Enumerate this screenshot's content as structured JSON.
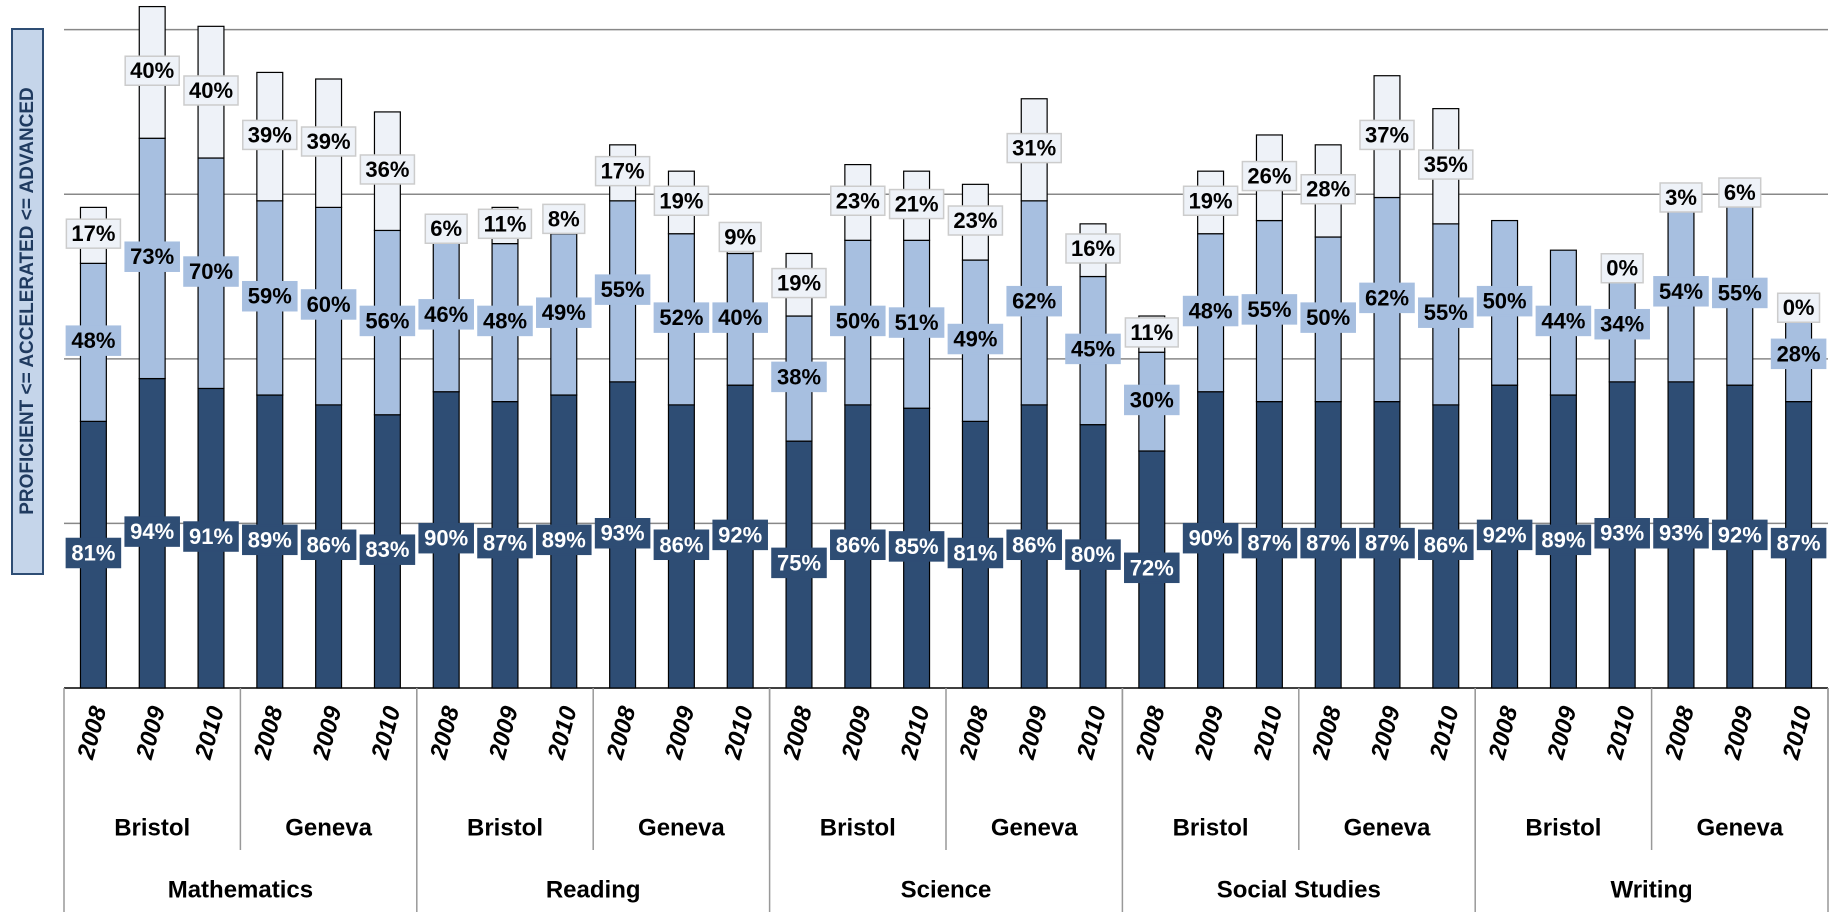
{
  "chart_data": {
    "type": "stacked-bar",
    "ylabel": "PROFICIENT <= ACCELERATED <= ADVANCED",
    "categories": [
      "2008",
      "2009",
      "2010",
      "2008",
      "2009",
      "2010",
      "2008",
      "2009",
      "2010",
      "2008",
      "2009",
      "2010",
      "2008",
      "2009",
      "2010",
      "2008",
      "2009",
      "2010",
      "2008",
      "2009",
      "2010",
      "2008",
      "2009",
      "2010",
      "2008",
      "2009",
      "2010",
      "2008",
      "2009",
      "2010"
    ],
    "towns": [
      "Bristol",
      "Geneva",
      "Bristol",
      "Geneva",
      "Bristol",
      "Geneva",
      "Bristol",
      "Geneva",
      "Bristol",
      "Geneva"
    ],
    "subjects": [
      "Mathematics",
      "Reading",
      "Science",
      "Social Studies",
      "Writing"
    ],
    "ylim": [
      0,
      209
    ],
    "yticks": [
      0,
      50,
      100,
      150,
      200
    ],
    "grid": true,
    "series": [
      {
        "color": "#2e4d74",
        "label_color": "#ffffff",
        "values": [
          81,
          94,
          91,
          89,
          86,
          83,
          90,
          87,
          89,
          93,
          86,
          92,
          75,
          86,
          85,
          81,
          86,
          80,
          72,
          90,
          87,
          87,
          87,
          86,
          92,
          89,
          93,
          93,
          92,
          87
        ],
        "value_labels": [
          "81%",
          "94%",
          "91%",
          "89%",
          "86%",
          "83%",
          "90%",
          "87%",
          "89%",
          "93%",
          "86%",
          "92%",
          "75%",
          "86%",
          "85%",
          "81%",
          "86%",
          "80%",
          "72%",
          "90%",
          "87%",
          "87%",
          "87%",
          "86%",
          "92%",
          "89%",
          "93%",
          "93%",
          "92%",
          "87%"
        ]
      },
      {
        "color": "#a7bfe0",
        "label_color": "#000000",
        "values": [
          48,
          73,
          70,
          59,
          60,
          56,
          46,
          48,
          49,
          55,
          52,
          40,
          38,
          50,
          51,
          49,
          62,
          45,
          30,
          48,
          55,
          50,
          62,
          55,
          50,
          44,
          34,
          54,
          55,
          28
        ],
        "value_labels": [
          "48%",
          "73%",
          "70%",
          "59%",
          "60%",
          "56%",
          "46%",
          "48%",
          "49%",
          "55%",
          "52%",
          "40%",
          "38%",
          "50%",
          "51%",
          "49%",
          "62%",
          "45%",
          "30%",
          "48%",
          "55%",
          "50%",
          "62%",
          "55%",
          "50%",
          "44%",
          "34%",
          "54%",
          "55%",
          "28%"
        ]
      },
      {
        "color": "#eef2f8",
        "label_color": "#000000",
        "values": [
          17,
          40,
          40,
          39,
          39,
          36,
          6,
          11,
          8,
          17,
          19,
          9,
          19,
          23,
          21,
          23,
          31,
          16,
          11,
          19,
          26,
          28,
          37,
          35,
          null,
          null,
          0,
          3,
          6,
          0
        ],
        "value_labels": [
          "17%",
          "40%",
          "40%",
          "39%",
          "39%",
          "36%",
          "6%",
          "11%",
          "8%",
          "17%",
          "19%",
          "9%",
          "19%",
          "23%",
          "21%",
          "23%",
          "31%",
          "16%",
          "11%",
          "19%",
          "26%",
          "28%",
          "37%",
          "35%",
          null,
          null,
          "0%",
          "3%",
          "6%",
          "0%"
        ]
      }
    ]
  }
}
